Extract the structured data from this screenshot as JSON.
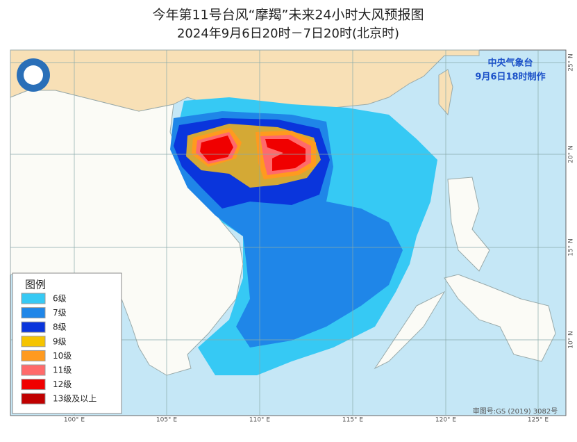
{
  "title": "今年第11号台风“摩羯”未来24小时大风预报图",
  "subtitle": "2024年9月6日20时－7日20时(北京时)",
  "agency": "中央气象台",
  "issued": "9月6日18时制作",
  "legend": {
    "title": "图例",
    "items": [
      {
        "label": "6级",
        "color": "#36c9f4"
      },
      {
        "label": "7级",
        "color": "#1f86e8"
      },
      {
        "label": "8级",
        "color": "#0a35dc"
      },
      {
        "label": "9级",
        "color": "#f5c400"
      },
      {
        "label": "10级",
        "color": "#ff9a1f"
      },
      {
        "label": "11级",
        "color": "#ff6a6a"
      },
      {
        "label": "12级",
        "color": "#f00000"
      },
      {
        "label": "13级及以上",
        "color": "#c00000"
      }
    ]
  },
  "longitude_labels": [
    "100° E",
    "105° E",
    "110° E",
    "115° E",
    "120° E",
    "125° E"
  ],
  "latitude_labels": [
    "25° N",
    "20° N",
    "15° N",
    "10° N"
  ],
  "approval": "审图号:GS (2019) 3082号"
}
